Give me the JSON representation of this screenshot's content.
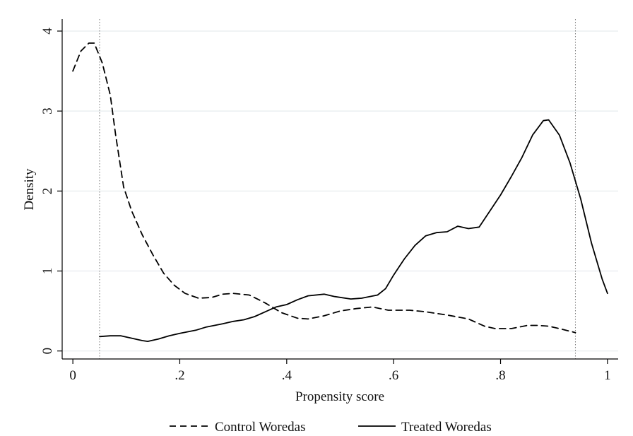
{
  "chart_data": {
    "type": "line",
    "title": "",
    "xlabel": "Propensity score",
    "ylabel": "Density",
    "xlim": [
      -0.02,
      1.02
    ],
    "ylim": [
      -0.1,
      4.15
    ],
    "x_ticks": [
      0,
      0.2,
      0.4,
      0.6,
      0.8,
      1
    ],
    "x_tick_labels": [
      "0",
      ".2",
      ".4",
      ".6",
      ".8",
      "1"
    ],
    "y_ticks": [
      0,
      1,
      2,
      3,
      4
    ],
    "y_tick_labels": [
      "0",
      "1",
      "2",
      "3",
      "4"
    ],
    "grid": "horizontal",
    "legend_position": "bottom",
    "reference_lines_x": [
      0.05,
      0.94
    ],
    "series": [
      {
        "name": "Control Woredas",
        "style": "dashed",
        "color": "#000000",
        "points": [
          [
            0,
            3.5
          ],
          [
            0.015,
            3.75
          ],
          [
            0.03,
            3.85
          ],
          [
            0.04,
            3.85
          ],
          [
            0.055,
            3.6
          ],
          [
            0.07,
            3.2
          ],
          [
            0.08,
            2.7
          ],
          [
            0.095,
            2.05
          ],
          [
            0.11,
            1.75
          ],
          [
            0.13,
            1.45
          ],
          [
            0.15,
            1.2
          ],
          [
            0.17,
            0.97
          ],
          [
            0.19,
            0.82
          ],
          [
            0.21,
            0.72
          ],
          [
            0.235,
            0.66
          ],
          [
            0.26,
            0.67
          ],
          [
            0.28,
            0.71
          ],
          [
            0.3,
            0.72
          ],
          [
            0.33,
            0.7
          ],
          [
            0.36,
            0.6
          ],
          [
            0.39,
            0.48
          ],
          [
            0.42,
            0.41
          ],
          [
            0.44,
            0.4
          ],
          [
            0.47,
            0.44
          ],
          [
            0.5,
            0.5
          ],
          [
            0.53,
            0.53
          ],
          [
            0.56,
            0.55
          ],
          [
            0.59,
            0.51
          ],
          [
            0.63,
            0.51
          ],
          [
            0.66,
            0.49
          ],
          [
            0.7,
            0.45
          ],
          [
            0.74,
            0.4
          ],
          [
            0.77,
            0.31
          ],
          [
            0.79,
            0.28
          ],
          [
            0.82,
            0.28
          ],
          [
            0.85,
            0.32
          ],
          [
            0.87,
            0.32
          ],
          [
            0.89,
            0.31
          ],
          [
            0.91,
            0.28
          ],
          [
            0.94,
            0.23
          ]
        ]
      },
      {
        "name": "Treated Woredas",
        "style": "solid",
        "color": "#000000",
        "points": [
          [
            0.05,
            0.18
          ],
          [
            0.07,
            0.19
          ],
          [
            0.09,
            0.19
          ],
          [
            0.11,
            0.16
          ],
          [
            0.13,
            0.13
          ],
          [
            0.14,
            0.12
          ],
          [
            0.16,
            0.15
          ],
          [
            0.18,
            0.19
          ],
          [
            0.2,
            0.22
          ],
          [
            0.23,
            0.26
          ],
          [
            0.25,
            0.3
          ],
          [
            0.28,
            0.34
          ],
          [
            0.3,
            0.37
          ],
          [
            0.32,
            0.39
          ],
          [
            0.34,
            0.43
          ],
          [
            0.36,
            0.49
          ],
          [
            0.38,
            0.55
          ],
          [
            0.4,
            0.58
          ],
          [
            0.42,
            0.64
          ],
          [
            0.44,
            0.69
          ],
          [
            0.47,
            0.71
          ],
          [
            0.49,
            0.68
          ],
          [
            0.52,
            0.65
          ],
          [
            0.54,
            0.66
          ],
          [
            0.57,
            0.7
          ],
          [
            0.585,
            0.78
          ],
          [
            0.6,
            0.95
          ],
          [
            0.62,
            1.15
          ],
          [
            0.64,
            1.32
          ],
          [
            0.66,
            1.44
          ],
          [
            0.68,
            1.48
          ],
          [
            0.7,
            1.49
          ],
          [
            0.72,
            1.56
          ],
          [
            0.74,
            1.53
          ],
          [
            0.76,
            1.55
          ],
          [
            0.78,
            1.75
          ],
          [
            0.8,
            1.95
          ],
          [
            0.82,
            2.18
          ],
          [
            0.84,
            2.42
          ],
          [
            0.86,
            2.7
          ],
          [
            0.88,
            2.88
          ],
          [
            0.89,
            2.89
          ],
          [
            0.91,
            2.7
          ],
          [
            0.93,
            2.35
          ],
          [
            0.95,
            1.9
          ],
          [
            0.97,
            1.35
          ],
          [
            0.99,
            0.9
          ],
          [
            1.0,
            0.72
          ]
        ]
      }
    ]
  }
}
